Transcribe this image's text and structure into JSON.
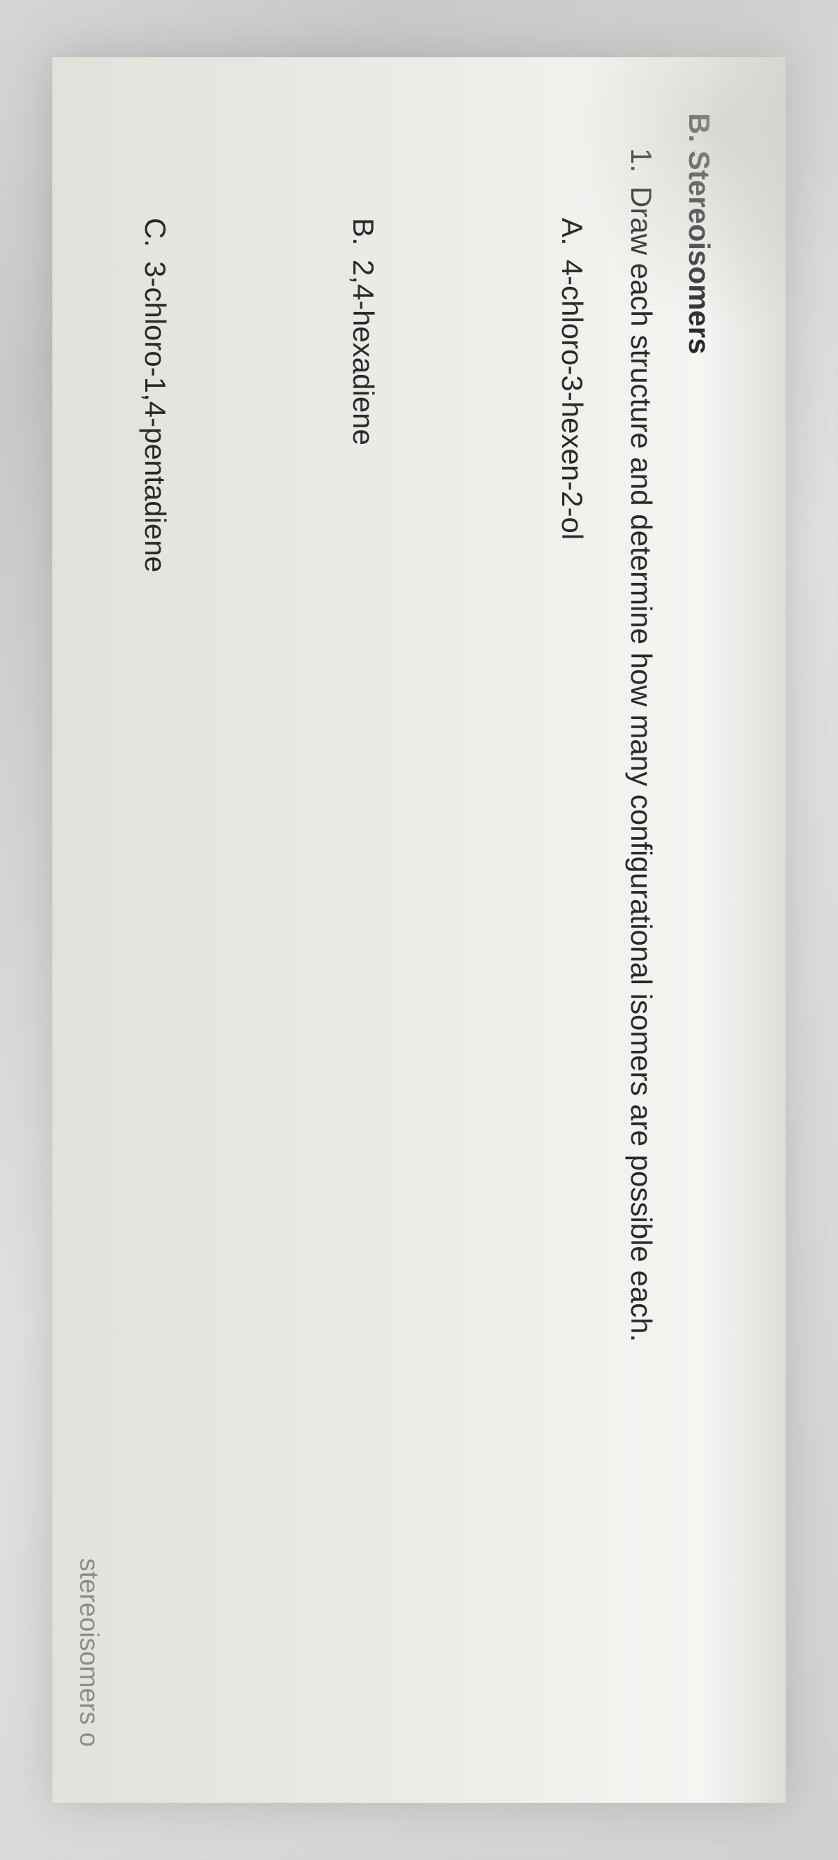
{
  "section": {
    "label": "B. Stereoisomers"
  },
  "question": {
    "number": "1.",
    "text": "Draw each structure and determine how many configurational isomers are possible each."
  },
  "items": [
    {
      "letter": "A.",
      "name": "4-chloro-3-hexen-2-ol"
    },
    {
      "letter": "B.",
      "name": "2,4-hexadiene"
    },
    {
      "letter": "C.",
      "name": "3-chloro-1,4-pentadiene"
    }
  ],
  "footer": {
    "partial_text": "stereoisomers o"
  },
  "styling": {
    "page_bg": "#f0f0ed",
    "text_color": "#2a2a2a",
    "font_family": "Arial",
    "header_fontsize": 42,
    "body_fontsize": 42,
    "rotation_deg": 90
  }
}
